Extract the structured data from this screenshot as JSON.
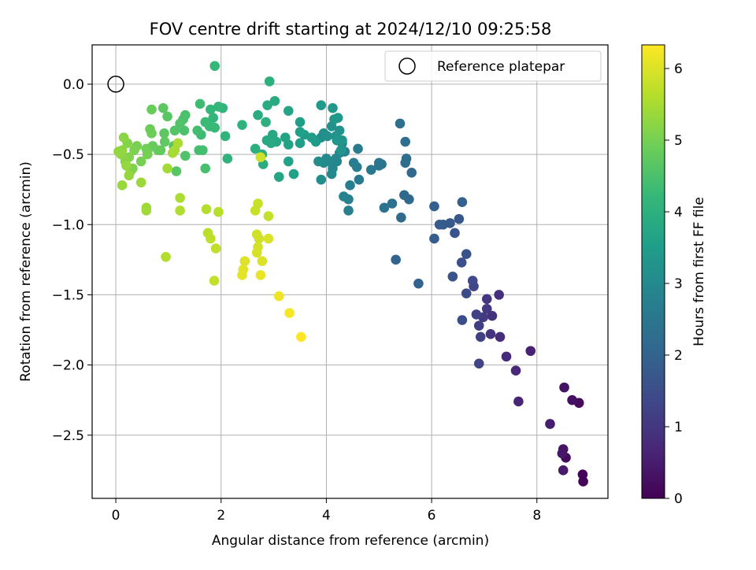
{
  "chart_data": {
    "type": "scatter",
    "title": "FOV centre drift starting at 2024/12/10 09:25:58",
    "xlabel": "Angular distance from reference (arcmin)",
    "ylabel": "Rotation from reference (arcmin)",
    "xlim": [
      -0.45,
      9.35
    ],
    "ylim": [
      -2.95,
      0.28
    ],
    "xticks": [
      0,
      2,
      4,
      6,
      8
    ],
    "yticks": [
      0.0,
      -0.5,
      -1.0,
      -1.5,
      -2.0,
      -2.5
    ],
    "xtick_labels": [
      "0",
      "2",
      "4",
      "6",
      "8"
    ],
    "ytick_labels": [
      "0.0",
      "−0.5",
      "−1.0",
      "−1.5",
      "−2.0",
      "−2.5"
    ],
    "grid": true,
    "legend": {
      "placement": "top-right",
      "entries": [
        "Reference platepar"
      ]
    },
    "reference_point": {
      "x": 0,
      "y": 0
    },
    "colorbar": {
      "label": "Hours from first FF file",
      "colormap": "viridis",
      "range": [
        0,
        6.33
      ],
      "ticks": [
        0,
        1,
        2,
        3,
        4,
        5,
        6
      ],
      "tick_labels": [
        "0",
        "1",
        "2",
        "3",
        "4",
        "5",
        "6"
      ]
    },
    "series": [
      {
        "fields": [
          "x",
          "y",
          "hours"
        ],
        "points": [
          [
            8.88,
            -2.83,
            0.05
          ],
          [
            8.87,
            -2.78,
            0.08
          ],
          [
            8.8,
            -2.27,
            0.2
          ],
          [
            8.67,
            -2.25,
            0.25
          ],
          [
            8.52,
            -2.16,
            0.3
          ],
          [
            8.55,
            -2.66,
            0.15
          ],
          [
            8.5,
            -2.6,
            0.35
          ],
          [
            8.48,
            -2.63,
            0.4
          ],
          [
            8.5,
            -2.75,
            0.45
          ],
          [
            8.25,
            -2.42,
            0.5
          ],
          [
            7.88,
            -1.9,
            0.6
          ],
          [
            7.65,
            -2.26,
            0.65
          ],
          [
            7.6,
            -2.04,
            0.7
          ],
          [
            7.42,
            -1.94,
            0.75
          ],
          [
            7.3,
            -1.8,
            0.8
          ],
          [
            7.28,
            -1.5,
            0.85
          ],
          [
            7.15,
            -1.65,
            0.9
          ],
          [
            7.12,
            -1.78,
            0.95
          ],
          [
            7.05,
            -1.53,
            1.0
          ],
          [
            7.05,
            -1.6,
            1.05
          ],
          [
            6.98,
            -1.66,
            1.1
          ],
          [
            6.9,
            -1.72,
            1.15
          ],
          [
            6.93,
            -1.8,
            1.2
          ],
          [
            6.85,
            -1.64,
            1.25
          ],
          [
            6.9,
            -1.99,
            1.3
          ],
          [
            6.8,
            -1.44,
            1.35
          ],
          [
            6.78,
            -1.4,
            1.4
          ],
          [
            6.66,
            -1.49,
            1.45
          ],
          [
            6.58,
            -1.68,
            1.5
          ],
          [
            6.57,
            -1.27,
            1.55
          ],
          [
            6.66,
            -1.21,
            1.6
          ],
          [
            6.4,
            -1.37,
            1.62
          ],
          [
            6.44,
            -1.06,
            1.65
          ],
          [
            6.52,
            -0.96,
            1.7
          ],
          [
            6.35,
            -0.99,
            1.75
          ],
          [
            6.22,
            -1.0,
            1.78
          ],
          [
            6.15,
            -1.0,
            1.82
          ],
          [
            6.05,
            -1.1,
            1.85
          ],
          [
            6.05,
            -0.87,
            1.9
          ],
          [
            6.58,
            -0.84,
            1.95
          ],
          [
            5.75,
            -1.42,
            2.0
          ],
          [
            5.32,
            -1.25,
            2.05
          ],
          [
            5.62,
            -0.63,
            2.1
          ],
          [
            5.57,
            -0.82,
            2.12
          ],
          [
            5.48,
            -0.79,
            2.15
          ],
          [
            5.42,
            -0.95,
            2.18
          ],
          [
            5.5,
            -0.56,
            2.22
          ],
          [
            5.52,
            -0.53,
            2.25
          ],
          [
            5.5,
            -0.41,
            2.28
          ],
          [
            5.4,
            -0.28,
            2.3
          ],
          [
            5.25,
            -0.85,
            2.35
          ],
          [
            5.1,
            -0.88,
            2.4
          ],
          [
            5.05,
            -0.57,
            2.42
          ],
          [
            5.0,
            -0.58,
            2.45
          ],
          [
            5.0,
            -0.56,
            2.5
          ],
          [
            4.85,
            -0.61,
            2.55
          ],
          [
            4.62,
            -0.68,
            2.6
          ],
          [
            4.6,
            -0.46,
            2.62
          ],
          [
            4.58,
            -0.59,
            2.65
          ],
          [
            4.52,
            -0.56,
            2.7
          ],
          [
            4.45,
            -0.72,
            2.72
          ],
          [
            4.42,
            -0.9,
            2.75
          ],
          [
            4.42,
            -0.82,
            2.78
          ],
          [
            4.33,
            -0.8,
            2.8
          ],
          [
            4.35,
            -0.48,
            2.82
          ],
          [
            4.3,
            -0.42,
            2.85
          ],
          [
            4.25,
            -0.49,
            2.88
          ],
          [
            4.2,
            -0.55,
            2.9
          ],
          [
            4.18,
            -0.53,
            2.92
          ],
          [
            4.12,
            -0.6,
            2.95
          ],
          [
            4.1,
            -0.64,
            2.97
          ],
          [
            4.05,
            -0.55,
            3.0
          ],
          [
            4.0,
            -0.53,
            3.02
          ],
          [
            3.95,
            -0.56,
            3.05
          ],
          [
            3.9,
            -0.68,
            3.08
          ],
          [
            3.85,
            -0.55,
            3.1
          ],
          [
            3.9,
            -0.38,
            3.12
          ],
          [
            3.95,
            -0.35,
            3.15
          ],
          [
            4.02,
            -0.37,
            3.18
          ],
          [
            4.1,
            -0.3,
            3.2
          ],
          [
            4.18,
            -0.37,
            3.22
          ],
          [
            4.25,
            -0.33,
            3.25
          ],
          [
            4.3,
            -0.4,
            3.28
          ],
          [
            4.28,
            -0.47,
            3.3
          ],
          [
            4.2,
            -0.4,
            3.32
          ],
          [
            4.15,
            -0.25,
            3.35
          ],
          [
            4.22,
            -0.24,
            3.38
          ],
          [
            4.12,
            -0.17,
            3.4
          ],
          [
            3.9,
            -0.15,
            3.42
          ],
          [
            3.8,
            -0.41,
            3.45
          ],
          [
            3.72,
            -0.38,
            3.48
          ],
          [
            3.58,
            -0.36,
            3.5
          ],
          [
            3.5,
            -0.42,
            3.52
          ],
          [
            3.5,
            -0.27,
            3.55
          ],
          [
            3.5,
            -0.34,
            3.58
          ],
          [
            3.38,
            -0.64,
            3.6
          ],
          [
            3.28,
            -0.55,
            3.62
          ],
          [
            3.28,
            -0.43,
            3.65
          ],
          [
            3.22,
            -0.38,
            3.68
          ],
          [
            3.28,
            -0.19,
            3.7
          ],
          [
            3.1,
            -0.66,
            3.72
          ],
          [
            3.05,
            -0.41,
            3.75
          ],
          [
            2.98,
            -0.36,
            3.78
          ],
          [
            2.95,
            -0.42,
            3.8
          ],
          [
            2.87,
            -0.4,
            3.82
          ],
          [
            3.02,
            -0.12,
            3.85
          ],
          [
            2.88,
            -0.15,
            3.88
          ],
          [
            2.7,
            -0.22,
            3.9
          ],
          [
            2.78,
            -0.5,
            3.92
          ],
          [
            2.8,
            -0.57,
            3.95
          ],
          [
            2.65,
            -0.46,
            3.98
          ],
          [
            2.92,
            0.02,
            4.0
          ],
          [
            2.85,
            -0.27,
            4.02
          ],
          [
            2.4,
            -0.29,
            4.05
          ],
          [
            2.12,
            -0.53,
            4.08
          ],
          [
            2.08,
            -0.37,
            4.1
          ],
          [
            2.03,
            -0.17,
            4.12
          ],
          [
            1.95,
            -0.16,
            4.15
          ],
          [
            1.85,
            -0.24,
            4.18
          ],
          [
            1.8,
            -0.18,
            4.2
          ],
          [
            1.88,
            0.13,
            4.22
          ],
          [
            1.88,
            -0.31,
            4.25
          ],
          [
            1.78,
            -0.3,
            4.28
          ],
          [
            1.7,
            -0.27,
            4.3
          ],
          [
            1.62,
            -0.36,
            4.32
          ],
          [
            1.6,
            -0.14,
            4.35
          ],
          [
            1.55,
            -0.33,
            4.38
          ],
          [
            1.58,
            -0.47,
            4.4
          ],
          [
            1.65,
            -0.47,
            4.42
          ],
          [
            1.7,
            -0.6,
            4.45
          ],
          [
            1.32,
            -0.22,
            4.48
          ],
          [
            1.28,
            -0.25,
            4.5
          ],
          [
            1.3,
            -0.33,
            4.52
          ],
          [
            1.32,
            -0.51,
            4.55
          ],
          [
            1.22,
            -0.28,
            4.58
          ],
          [
            1.12,
            -0.33,
            4.6
          ],
          [
            1.1,
            -0.44,
            4.62
          ],
          [
            1.15,
            -0.62,
            4.65
          ],
          [
            0.98,
            -0.23,
            4.68
          ],
          [
            0.9,
            -0.17,
            4.7
          ],
          [
            0.92,
            -0.35,
            4.72
          ],
          [
            0.93,
            -0.41,
            4.75
          ],
          [
            0.85,
            -0.47,
            4.78
          ],
          [
            0.8,
            -0.47,
            4.8
          ],
          [
            0.7,
            -0.44,
            4.82
          ],
          [
            0.68,
            -0.18,
            4.85
          ],
          [
            0.65,
            -0.32,
            4.88
          ],
          [
            0.68,
            -0.35,
            4.9
          ],
          [
            0.6,
            -0.48,
            4.92
          ],
          [
            0.58,
            -0.46,
            4.95
          ],
          [
            0.6,
            -0.5,
            4.98
          ],
          [
            0.48,
            -0.55,
            5.0
          ],
          [
            0.4,
            -0.44,
            5.02
          ],
          [
            0.35,
            -0.47,
            5.05
          ],
          [
            0.32,
            -0.6,
            5.08
          ],
          [
            0.28,
            -0.62,
            5.1
          ],
          [
            0.25,
            -0.52,
            5.12
          ],
          [
            0.22,
            -0.42,
            5.15
          ],
          [
            0.18,
            -0.55,
            5.18
          ],
          [
            0.15,
            -0.38,
            5.2
          ],
          [
            0.12,
            -0.47,
            5.22
          ],
          [
            0.1,
            -0.5,
            5.25
          ],
          [
            0.05,
            -0.48,
            5.28
          ],
          [
            0.2,
            -0.58,
            5.3
          ],
          [
            0.25,
            -0.65,
            5.32
          ],
          [
            0.12,
            -0.72,
            5.35
          ],
          [
            0.48,
            -0.7,
            5.38
          ],
          [
            0.58,
            -0.88,
            5.4
          ],
          [
            0.58,
            -0.9,
            5.42
          ],
          [
            0.98,
            -0.6,
            5.45
          ],
          [
            1.08,
            -0.49,
            5.48
          ],
          [
            1.12,
            -0.47,
            5.5
          ],
          [
            1.18,
            -0.42,
            5.52
          ],
          [
            1.22,
            -0.81,
            5.55
          ],
          [
            1.22,
            -0.9,
            5.58
          ],
          [
            0.95,
            -1.23,
            5.6
          ],
          [
            1.72,
            -0.89,
            5.62
          ],
          [
            1.95,
            -0.91,
            5.65
          ],
          [
            1.75,
            -1.06,
            5.68
          ],
          [
            1.8,
            -1.1,
            5.7
          ],
          [
            1.9,
            -1.17,
            5.72
          ],
          [
            1.87,
            -1.4,
            5.75
          ],
          [
            2.9,
            -0.94,
            5.78
          ],
          [
            2.7,
            -0.85,
            5.8
          ],
          [
            2.65,
            -0.9,
            5.82
          ],
          [
            2.75,
            -0.52,
            5.85
          ],
          [
            2.68,
            -1.07,
            5.88
          ],
          [
            2.72,
            -1.1,
            5.9
          ],
          [
            2.7,
            -1.16,
            5.92
          ],
          [
            2.68,
            -1.2,
            5.95
          ],
          [
            2.9,
            -1.1,
            5.98
          ],
          [
            2.78,
            -1.26,
            6.0
          ],
          [
            2.45,
            -1.26,
            6.02
          ],
          [
            2.42,
            -1.32,
            6.05
          ],
          [
            2.4,
            -1.36,
            6.08
          ],
          [
            2.75,
            -1.36,
            6.12
          ],
          [
            3.1,
            -1.51,
            6.18
          ],
          [
            3.3,
            -1.63,
            6.25
          ],
          [
            3.52,
            -1.8,
            6.33
          ]
        ]
      }
    ]
  }
}
